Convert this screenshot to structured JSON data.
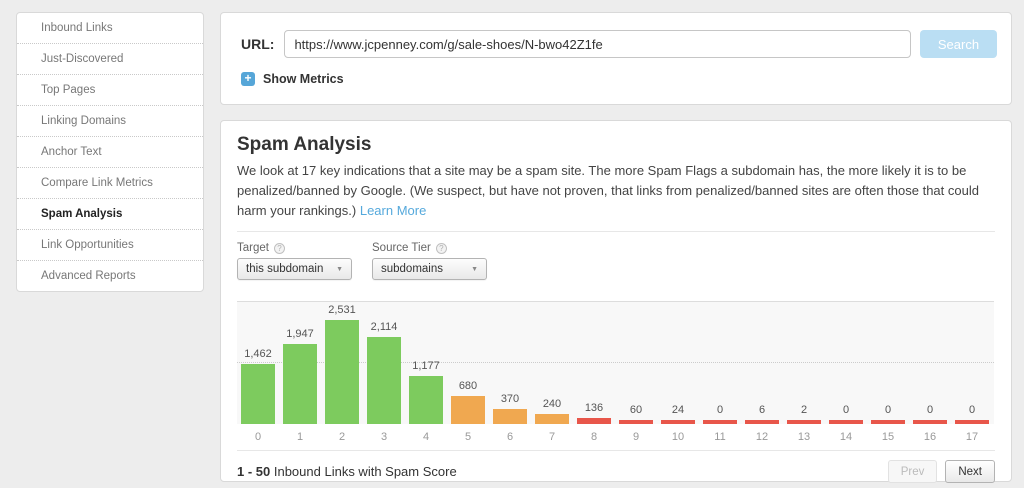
{
  "sidebar": {
    "items": [
      {
        "label": "Inbound Links",
        "active": false
      },
      {
        "label": "Just-Discovered",
        "active": false
      },
      {
        "label": "Top Pages",
        "active": false
      },
      {
        "label": "Linking Domains",
        "active": false
      },
      {
        "label": "Anchor Text",
        "active": false
      },
      {
        "label": "Compare Link Metrics",
        "active": false
      },
      {
        "label": "Spam Analysis",
        "active": true
      },
      {
        "label": "Link Opportunities",
        "active": false
      },
      {
        "label": "Advanced Reports",
        "active": false
      }
    ]
  },
  "url_panel": {
    "label": "URL:",
    "url_value": "https://www.jcpenney.com/g/sale-shoes/N-bwo42Z1fe",
    "search_label": "Search",
    "show_metrics_label": "Show Metrics"
  },
  "icons": {
    "plus": "+",
    "help": "?",
    "dropdown_arrow": "▼"
  },
  "spam": {
    "title": "Spam Analysis",
    "description": "We look at 17 key indications that a site may be a spam site. The more Spam Flags a subdomain has, the more likely it is to be penalized/banned by Google. (We suspect, but have not proven, that links from penalized/banned sites are often those that could harm your rankings.)",
    "learn_more": "Learn More",
    "target_label": "Target",
    "target_value": "this subdomain",
    "source_tier_label": "Source Tier",
    "source_tier_value": "subdomains"
  },
  "chart_data": {
    "type": "bar",
    "title": "",
    "xlabel": "",
    "ylabel": "",
    "categories": [
      "0",
      "1",
      "2",
      "3",
      "4",
      "5",
      "6",
      "7",
      "8",
      "9",
      "10",
      "11",
      "12",
      "13",
      "14",
      "15",
      "16",
      "17"
    ],
    "values": [
      1462,
      1947,
      2531,
      2114,
      1177,
      680,
      370,
      240,
      136,
      60,
      24,
      0,
      6,
      2,
      0,
      0,
      0,
      0
    ],
    "value_labels": [
      "1,462",
      "1,947",
      "2,531",
      "2,114",
      "1,177",
      "680",
      "370",
      "240",
      "136",
      "60",
      "24",
      "0",
      "6",
      "2",
      "0",
      "0",
      "0",
      "0"
    ],
    "ylim": [
      0,
      3000
    ],
    "gridlines": [
      1500
    ],
    "legend": "none",
    "color_groups": [
      {
        "start": 0,
        "end": 4,
        "color": "#7dcb5e"
      },
      {
        "start": 5,
        "end": 7,
        "color": "#f0a850"
      },
      {
        "start": 8,
        "end": 17,
        "color": "#e8564a"
      }
    ]
  },
  "footer": {
    "range": "1 - 50",
    "caption": " Inbound Links with Spam Score",
    "prev_label": "Prev",
    "next_label": "Next"
  }
}
